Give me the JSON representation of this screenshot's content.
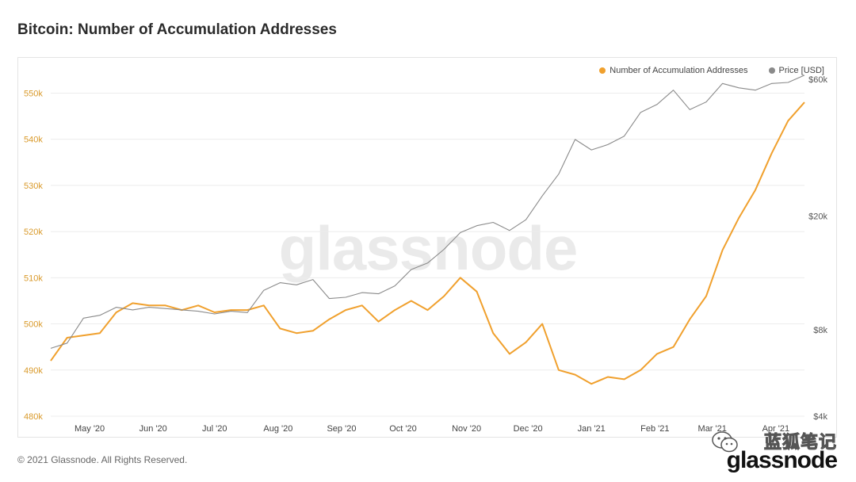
{
  "title": "Bitcoin: Number of Accumulation Addresses",
  "watermark": "glassnode",
  "footer": "© 2021 Glassnode. All Rights Reserved.",
  "branding": {
    "wechat_name": "蓝狐笔记",
    "logo_text": "glassnode"
  },
  "colors": {
    "accumulation": "#f0a02d",
    "price": "#8a8a8a",
    "left_axis": "#d99a2b",
    "right_axis": "#555555",
    "grid": "#ececec"
  },
  "chart_data": {
    "type": "line",
    "title": "Bitcoin: Number of Accumulation Addresses",
    "legend_position": "top-right",
    "grid": true,
    "x_tick_labels": [
      "May '20",
      "Jun '20",
      "Jul '20",
      "Aug '20",
      "Sep '20",
      "Oct '20",
      "Nov '20",
      "Dec '20",
      "Jan '21",
      "Feb '21",
      "Mar '21",
      "Apr '21"
    ],
    "left_axis": {
      "ticks": [
        "480k",
        "490k",
        "500k",
        "510k",
        "520k",
        "530k",
        "540k",
        "550k"
      ],
      "ylim": [
        480000,
        553000
      ]
    },
    "right_axis": {
      "scale": "log",
      "ticks": [
        "$4k",
        "$8k",
        "$20k",
        "$60k"
      ],
      "ylim": [
        4000,
        60000
      ]
    },
    "x": [
      "2020-04-12",
      "2020-04-20",
      "2020-04-28",
      "2020-05-06",
      "2020-05-14",
      "2020-05-22",
      "2020-05-30",
      "2020-06-07",
      "2020-06-15",
      "2020-06-23",
      "2020-07-01",
      "2020-07-09",
      "2020-07-17",
      "2020-07-25",
      "2020-08-02",
      "2020-08-10",
      "2020-08-18",
      "2020-08-26",
      "2020-09-03",
      "2020-09-11",
      "2020-09-19",
      "2020-09-27",
      "2020-10-05",
      "2020-10-13",
      "2020-10-21",
      "2020-10-29",
      "2020-11-06",
      "2020-11-14",
      "2020-11-22",
      "2020-11-30",
      "2020-12-08",
      "2020-12-16",
      "2020-12-24",
      "2021-01-01",
      "2021-01-09",
      "2021-01-17",
      "2021-01-25",
      "2021-02-02",
      "2021-02-10",
      "2021-02-18",
      "2021-02-26",
      "2021-03-06",
      "2021-03-14",
      "2021-03-22",
      "2021-03-30",
      "2021-04-07",
      "2021-04-15"
    ],
    "series": [
      {
        "name": "Number of Accumulation Addresses",
        "axis": "left",
        "values": [
          492000,
          497000,
          497500,
          498000,
          502500,
          504500,
          504000,
          504000,
          503000,
          504000,
          502500,
          503000,
          503000,
          504000,
          499000,
          498000,
          498500,
          501000,
          503000,
          504000,
          500500,
          503000,
          505000,
          503000,
          506000,
          510000,
          507000,
          498000,
          493500,
          496000,
          500000,
          490000,
          489000,
          487000,
          488500,
          488000,
          490000,
          493500,
          495000,
          501000,
          506000,
          516000,
          523000,
          529000,
          537000,
          544000,
          548000
        ]
      },
      {
        "name": "Price [USD]",
        "axis": "right",
        "values": [
          6900,
          7200,
          8800,
          9000,
          9600,
          9400,
          9600,
          9500,
          9400,
          9300,
          9100,
          9300,
          9200,
          11000,
          11700,
          11500,
          12000,
          10300,
          10400,
          10800,
          10700,
          11400,
          13000,
          13700,
          15300,
          17500,
          18500,
          19000,
          17800,
          19400,
          23500,
          28000,
          37000,
          34000,
          35500,
          38000,
          46000,
          49000,
          55000,
          47000,
          50000,
          58000,
          56000,
          55000,
          58000,
          58500,
          62000
        ]
      }
    ]
  }
}
